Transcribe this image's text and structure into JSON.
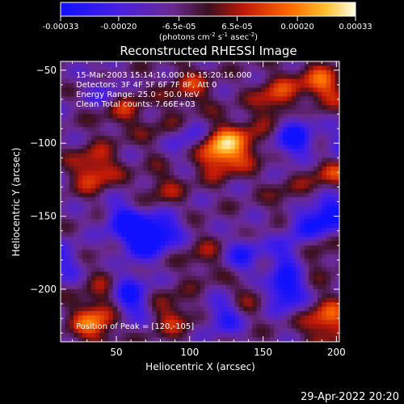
{
  "chart_data": {
    "type": "heatmap",
    "title": "Reconstructed RHESSI Image",
    "xlabel": "Heliocentric X (arcsec)",
    "ylabel": "Heliocentric Y (arcsec)",
    "xlim": [
      12,
      202
    ],
    "ylim": [
      -236,
      -44
    ],
    "xticks": [
      50,
      100,
      150,
      200
    ],
    "yticks": [
      -50,
      -100,
      -150,
      -200
    ],
    "colorbar": {
      "ticks": [
        "-0.00033",
        "-0.00020",
        "-6.5e-05",
        "6.5e-05",
        "0.00020",
        "0.00033"
      ],
      "tick_values": [
        -0.00033,
        -0.0002,
        -6.5e-05,
        6.5e-05,
        0.0002,
        0.00033
      ],
      "range": [
        -0.00033,
        0.00033
      ],
      "unit_base": "(photons cm",
      "unit_exp1": "-2",
      "unit_mid": " s",
      "unit_exp2": "-1",
      "unit_mid2": " asec",
      "unit_exp3": "-2",
      "unit_end": ")"
    },
    "info_lines": [
      "15-Mar-2003 15:14:16.000 to 15:20:16.000",
      "Detectors: 3F 4F 5F 6F 7F 8F, Att 0",
      "Energy Range: 25.0 - 50.0 keV",
      "Clean     Total counts: 7.66E+03"
    ],
    "peak_label": "Position of Peak = [120,-105]",
    "peak_position": [
      120,
      -105
    ],
    "sources": [
      {
        "x": 120,
        "y": -105,
        "value": 0.00033
      },
      {
        "x": 188,
        "y": -62,
        "value": 0.00026
      },
      {
        "x": 198,
        "y": -118,
        "value": 0.00022
      },
      {
        "x": 160,
        "y": -70,
        "value": 0.00021
      },
      {
        "x": 52,
        "y": -74,
        "value": 0.0002
      },
      {
        "x": 35,
        "y": -118,
        "value": 0.00022
      },
      {
        "x": 86,
        "y": -97,
        "value": 0.00016
      },
      {
        "x": 100,
        "y": -62,
        "value": 0.00015
      },
      {
        "x": 138,
        "y": -100,
        "value": 0.00014
      },
      {
        "x": 35,
        "y": -222,
        "value": 0.00025
      },
      {
        "x": 194,
        "y": -222,
        "value": 0.00024
      },
      {
        "x": 48,
        "y": -195,
        "value": 0.00014
      },
      {
        "x": 88,
        "y": -218,
        "value": 0.00015
      },
      {
        "x": 185,
        "y": -175,
        "value": 0.00012
      },
      {
        "x": 110,
        "y": -178,
        "value": 0.0001
      },
      {
        "x": 82,
        "y": -132,
        "value": 0.00011
      },
      {
        "x": 168,
        "y": -138,
        "value": 9e-05
      },
      {
        "x": 140,
        "y": -205,
        "value": 0.0001
      }
    ]
  },
  "footer": {
    "date": "29-Apr-2022 20:20"
  }
}
